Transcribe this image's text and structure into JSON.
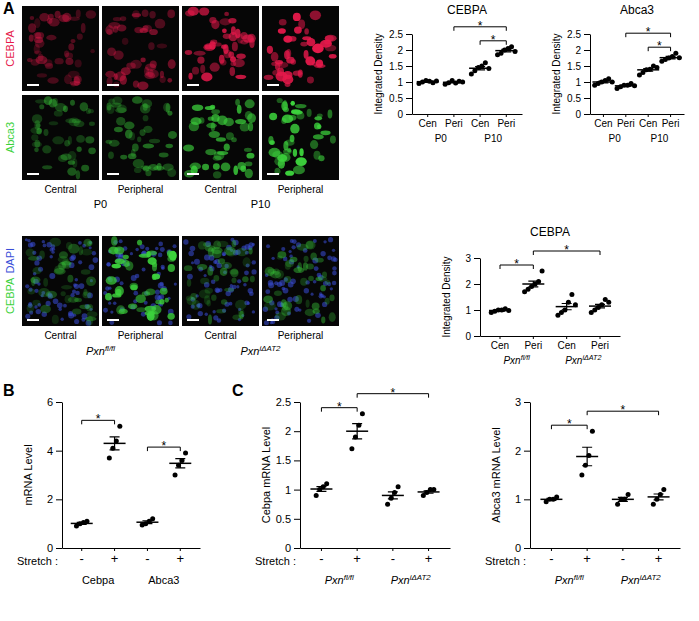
{
  "panel_letters": [
    "A",
    "B",
    "C"
  ],
  "images": {
    "top": {
      "rows": [
        {
          "label": "CEBPA",
          "color": "#e6194b"
        },
        {
          "label": "Abca3",
          "color": "#3cd23c"
        }
      ],
      "columns": [
        "Central",
        "Peripheral",
        "Central",
        "Peripheral"
      ],
      "groups": [
        "P0",
        "P10"
      ]
    },
    "bottom": {
      "label": [
        {
          "text": "CEBPA",
          "color": "#3cd23c"
        },
        {
          "text": "DAPI",
          "color": "#3a4fd8"
        }
      ],
      "columns": [
        "Central",
        "Peripheral",
        "Central",
        "Peripheral"
      ],
      "groups": [
        {
          "text": "Pxn",
          "sup": "fl/fl"
        },
        {
          "text": "Pxn",
          "sup": "iΔAT2"
        }
      ]
    }
  },
  "chart_data": [
    {
      "type": "dot",
      "title": "CEBPA",
      "y_label": "Integrated Density",
      "categories": [
        "Cen",
        "Peri",
        "Cen",
        "Peri"
      ],
      "groups": [
        "P0",
        "P10"
      ],
      "ylim": [
        0,
        2.5
      ],
      "yticks": [
        0,
        0.5,
        1,
        1.5,
        2,
        2.5
      ],
      "color": "#000000",
      "points": [
        [
          0.95,
          1.0,
          1.05,
          1.02,
          0.98,
          1.03
        ],
        [
          0.93,
          0.98,
          1.05,
          0.97,
          1.02,
          1.0
        ],
        [
          1.25,
          1.35,
          1.45,
          1.5,
          1.6,
          1.42
        ],
        [
          1.85,
          1.9,
          2.0,
          2.05,
          2.1,
          1.95
        ]
      ],
      "mean": [
        1.01,
        0.99,
        1.43,
        1.98
      ],
      "error": [
        0.02,
        0.02,
        0.05,
        0.04
      ],
      "significance": [
        {
          "pair": [
            1,
            3
          ],
          "label": "*"
        },
        {
          "pair": [
            2,
            3
          ],
          "label": "*"
        }
      ]
    },
    {
      "type": "dot",
      "title": "Abca3",
      "y_label": "Integrated Density",
      "categories": [
        "Cen",
        "Peri",
        "Cen",
        "Peri"
      ],
      "groups": [
        "P0",
        "P10"
      ],
      "ylim": [
        0,
        2.5
      ],
      "yticks": [
        0,
        0.5,
        1,
        1.5,
        2,
        2.5
      ],
      "color": "#000000",
      "points": [
        [
          0.9,
          0.95,
          1.0,
          1.05,
          1.1,
          1.0
        ],
        [
          0.8,
          0.85,
          0.9,
          0.9,
          0.95,
          0.88
        ],
        [
          1.22,
          1.3,
          1.38,
          1.4,
          1.5,
          1.45
        ],
        [
          1.65,
          1.7,
          1.75,
          1.8,
          1.9,
          1.76
        ]
      ],
      "mean": [
        1.0,
        0.88,
        1.38,
        1.76
      ],
      "error": [
        0.03,
        0.02,
        0.04,
        0.04
      ],
      "significance": [
        {
          "pair": [
            1,
            3
          ],
          "label": "*"
        },
        {
          "pair": [
            2,
            3
          ],
          "label": "*"
        }
      ]
    },
    {
      "type": "dot",
      "title": "CEBPA",
      "y_label": "Integrated Density",
      "categories": [
        "Cen",
        "Peri",
        "Cen",
        "Peri"
      ],
      "groups": [
        {
          "text": "Pxn",
          "sup": "fl/fl"
        },
        {
          "text": "Pxn",
          "sup": "iΔAT2"
        }
      ],
      "ylim": [
        0,
        3
      ],
      "yticks": [
        0,
        1,
        2,
        3
      ],
      "color": "#000000",
      "points": [
        [
          0.9,
          0.95,
          1.0,
          1.0,
          1.05,
          0.98
        ],
        [
          1.7,
          1.8,
          1.9,
          2.0,
          2.1,
          2.5
        ],
        [
          0.8,
          0.9,
          1.0,
          1.3,
          1.6,
          1.2
        ],
        [
          0.9,
          1.0,
          1.1,
          1.2,
          1.4,
          1.3
        ]
      ],
      "mean": [
        0.98,
        2.0,
        1.13,
        1.15
      ],
      "error": [
        0.02,
        0.11,
        0.12,
        0.07
      ],
      "significance": [
        {
          "pair": [
            0,
            1
          ],
          "label": "*"
        },
        {
          "pair": [
            1,
            3
          ],
          "label": "*"
        }
      ]
    },
    {
      "type": "dot",
      "y_label": "mRNA Level",
      "category_title": "Stretch :",
      "categories": [
        "-",
        "+",
        "-",
        "+"
      ],
      "groups": [
        "Cebpa",
        "Abca3"
      ],
      "ylim": [
        0,
        6
      ],
      "yticks": [
        0,
        2,
        4,
        6
      ],
      "color": "#000000",
      "points": [
        [
          0.9,
          1.0,
          1.05,
          1.1
        ],
        [
          3.7,
          4.1,
          4.4,
          5.0
        ],
        [
          0.95,
          1.0,
          1.1,
          1.2
        ],
        [
          3.0,
          3.4,
          3.6,
          3.9
        ]
      ],
      "mean": [
        1.01,
        4.3,
        1.06,
        3.48
      ],
      "error": [
        0.04,
        0.27,
        0.06,
        0.19
      ],
      "significance": [
        {
          "pair": [
            0,
            1
          ],
          "label": "*"
        },
        {
          "pair": [
            2,
            3
          ],
          "label": "*"
        }
      ]
    },
    {
      "type": "dot",
      "y_label": "Cebpa mRNA Level",
      "category_title": "Stretch :",
      "categories": [
        "-",
        "+",
        "-",
        "+"
      ],
      "groups": [
        {
          "text": "Pxn",
          "sup": "fl/fl"
        },
        {
          "text": "Pxn",
          "sup": "iΔAT2"
        }
      ],
      "ylim": [
        0,
        2.5
      ],
      "yticks": [
        0,
        0.5,
        1,
        1.5,
        2,
        2.5
      ],
      "color": "#000000",
      "points": [
        [
          0.9,
          1.0,
          1.05,
          1.1
        ],
        [
          1.7,
          1.9,
          2.1,
          2.3
        ],
        [
          0.75,
          0.85,
          0.95,
          1.05
        ],
        [
          0.9,
          0.95,
          1.0,
          1.0
        ]
      ],
      "mean": [
        1.01,
        2.0,
        0.9,
        0.96
      ],
      "error": [
        0.04,
        0.13,
        0.06,
        0.02
      ],
      "significance": [
        {
          "pair": [
            0,
            1
          ],
          "label": "*"
        },
        {
          "pair": [
            1,
            3
          ],
          "label": "*"
        }
      ]
    },
    {
      "type": "dot",
      "y_label": "Abca3 mRNA Level",
      "category_title": "Stretch :",
      "categories": [
        "-",
        "+",
        "-",
        "+"
      ],
      "groups": [
        {
          "text": "Pxn",
          "sup": "fl/fl"
        },
        {
          "text": "Pxn",
          "sup": "iΔAT2"
        }
      ],
      "ylim": [
        0,
        3
      ],
      "yticks": [
        0,
        1,
        2,
        3
      ],
      "color": "#000000",
      "points": [
        [
          0.95,
          1.0,
          1.0,
          1.05
        ],
        [
          1.5,
          1.7,
          1.9,
          2.4
        ],
        [
          0.9,
          1.0,
          1.0,
          1.1
        ],
        [
          0.9,
          1.0,
          1.1,
          1.2
        ]
      ],
      "mean": [
        1.0,
        1.88,
        1.0,
        1.05
      ],
      "error": [
        0.02,
        0.19,
        0.04,
        0.06
      ],
      "significance": [
        {
          "pair": [
            0,
            1
          ],
          "label": "*"
        },
        {
          "pair": [
            1,
            3
          ],
          "label": "*"
        }
      ]
    }
  ]
}
